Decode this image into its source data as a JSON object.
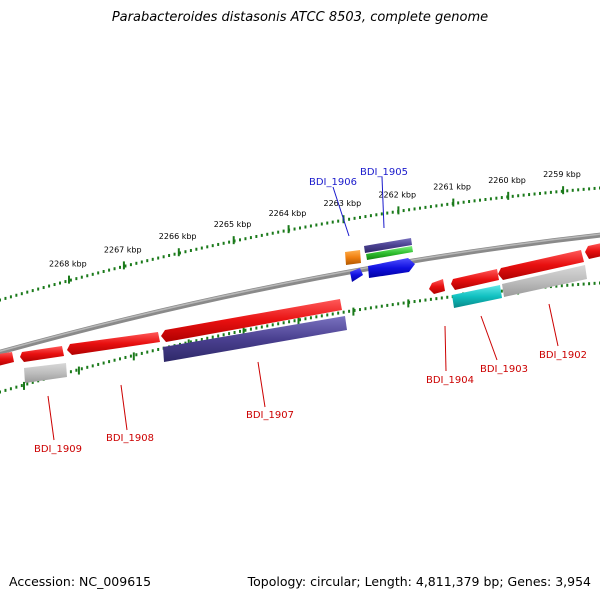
{
  "title": "Parabacteroides distasonis ATCC 8503, complete genome",
  "footer": {
    "accession": "Accession: NC_009615",
    "topology": "Topology: circular; Length: 4,811,379 bp; Genes: 3,954"
  },
  "colors": {
    "backbone": "#8a8a8a",
    "tick": "#1a7a1a",
    "label_red": "#cc0000",
    "label_blue": "#1a1acc"
  },
  "scale": {
    "ticks": [
      {
        "label": "2268 kbp"
      },
      {
        "label": "2267 kbp"
      },
      {
        "label": "2266 kbp"
      },
      {
        "label": "2265 kbp"
      },
      {
        "label": "2264 kbp"
      },
      {
        "label": "2263 kbp"
      },
      {
        "label": "2262 kbp"
      },
      {
        "label": "2261 kbp"
      },
      {
        "label": "2260 kbp"
      },
      {
        "label": "2259 kbp"
      }
    ]
  },
  "genes": [
    {
      "label": "BDI_1909",
      "strand": "forward",
      "color": "#e01010"
    },
    {
      "label": "BDI_1908",
      "strand": "forward",
      "color": "#e01010"
    },
    {
      "label": "BDI_1907",
      "strand": "reverse",
      "color": "#4a4090"
    },
    {
      "label": "BDI_1906",
      "strand": "forward",
      "color": "#f08010"
    },
    {
      "label": "BDI_1905",
      "strand": "forward",
      "color": "#1010e0"
    },
    {
      "label": "BDI_1904",
      "strand": "forward",
      "color": "#e01010"
    },
    {
      "label": "BDI_1903",
      "strand": "reverse",
      "color": "#10c0c0"
    },
    {
      "label": "BDI_1902",
      "strand": "forward",
      "color": "#e01010"
    }
  ]
}
